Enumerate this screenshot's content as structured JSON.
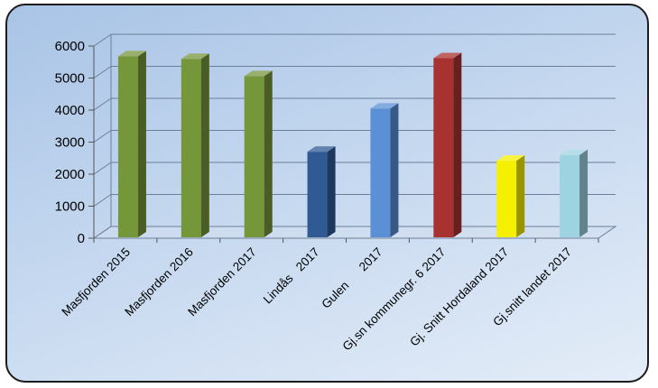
{
  "chart_data": {
    "type": "bar",
    "title": "",
    "xlabel": "",
    "ylabel": "",
    "ylim": [
      0,
      6000
    ],
    "yticks": [
      0,
      1000,
      2000,
      3000,
      4000,
      5000,
      6000
    ],
    "ytick_labels": [
      "0",
      "1000",
      "2000",
      "3000",
      "4000",
      "5000",
      "6000"
    ],
    "grid": true,
    "legend": "none",
    "categories": [
      "Masfjorden 2015",
      "Masfjorden 2016",
      "Masfjorden 2017",
      "Lindås   2017",
      "Gulen      2017",
      "Gj.sn kommunegr. 6 2017",
      "Gj. Snitt Hordaland 2017",
      "Gj.snitt landet 2017"
    ],
    "values": [
      5680,
      5600,
      5060,
      2700,
      4050,
      5620,
      2420,
      2600
    ],
    "colors": [
      "#76963a",
      "#76963a",
      "#76963a",
      "#2f5a94",
      "#5b8fd6",
      "#a83230",
      "#f5f000",
      "#9ed3e2"
    ]
  }
}
